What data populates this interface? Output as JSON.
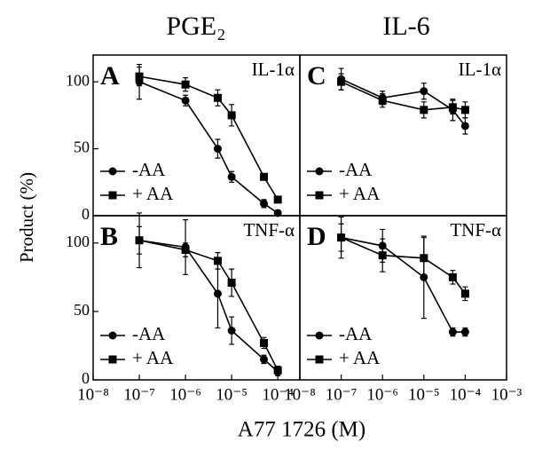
{
  "column_titles": [
    "PGE₂",
    "IL-6"
  ],
  "y_label": "Product (%)",
  "x_label": "A77 1726 (M)",
  "chart_data": [
    {
      "type": "line",
      "panel_label": "A",
      "annotation": "IL-1α",
      "xlog": true,
      "legend": "lower left",
      "xlim": [
        1e-08,
        0.0003
      ],
      "ylim": [
        0,
        120
      ],
      "yticks": [
        0,
        50,
        100
      ],
      "x": [
        1e-07,
        1e-06,
        5e-06,
        1e-05,
        5e-05,
        0.0001
      ],
      "series": [
        {
          "name": "-AA",
          "color": "#000000",
          "marker": "circle",
          "values": [
            100,
            86,
            50,
            29,
            9,
            2
          ],
          "errors": [
            13,
            4,
            7,
            4,
            3,
            2
          ]
        },
        {
          "name": "+ AA",
          "color": "#000000",
          "marker": "square",
          "values": [
            104,
            98,
            88,
            75,
            29,
            12
          ],
          "errors": [
            7,
            5,
            6,
            8,
            2,
            2
          ]
        }
      ]
    },
    {
      "type": "line",
      "panel_label": "B",
      "annotation": "TNF-α",
      "xlog": true,
      "legend": "lower left",
      "xlim": [
        1e-08,
        0.0003
      ],
      "ylim": [
        0,
        120
      ],
      "yticks": [
        0,
        50,
        100
      ],
      "xticks": [
        {
          "value": 1e-08,
          "label": "10⁻⁸"
        },
        {
          "value": 1e-07,
          "label": "10⁻⁷"
        },
        {
          "value": 1e-06,
          "label": "10⁻⁶"
        },
        {
          "value": 1e-05,
          "label": "10⁻⁵"
        },
        {
          "value": 0.0001,
          "label": "10⁻⁴"
        }
      ],
      "x": [
        1e-07,
        1e-06,
        5e-06,
        1e-05,
        5e-05,
        0.0001
      ],
      "series": [
        {
          "name": "-AA",
          "color": "#000000",
          "marker": "circle",
          "values": [
            102,
            97,
            63,
            36,
            15,
            6
          ],
          "errors": [
            20,
            20,
            25,
            10,
            3,
            3
          ]
        },
        {
          "name": "+ AA",
          "color": "#000000",
          "marker": "square",
          "values": [
            102,
            95,
            87,
            71,
            27,
            7
          ],
          "errors": [
            10,
            5,
            6,
            10,
            4,
            3
          ]
        }
      ]
    },
    {
      "type": "line",
      "panel_label": "C",
      "annotation": "IL-1α",
      "xlog": true,
      "legend": "lower left",
      "xlim": [
        1e-08,
        0.001
      ],
      "ylim": [
        0,
        120
      ],
      "x": [
        1e-07,
        1e-06,
        1e-05,
        5e-05,
        0.0001
      ],
      "series": [
        {
          "name": "-AA",
          "color": "#000000",
          "marker": "circle",
          "values": [
            102,
            88,
            93,
            79,
            67
          ],
          "errors": [
            8,
            5,
            6,
            8,
            6
          ]
        },
        {
          "name": "+ AA",
          "color": "#000000",
          "marker": "square",
          "values": [
            100,
            86,
            79,
            81,
            79
          ],
          "errors": [
            6,
            5,
            6,
            5,
            6
          ]
        }
      ]
    },
    {
      "type": "line",
      "panel_label": "D",
      "annotation": "TNF-α",
      "xlog": true,
      "legend": "lower left",
      "xlim": [
        1e-08,
        0.001
      ],
      "ylim": [
        0,
        120
      ],
      "xticks": [
        {
          "value": 1e-08,
          "label": "10⁻⁸"
        },
        {
          "value": 1e-07,
          "label": "10⁻⁷"
        },
        {
          "value": 1e-06,
          "label": "10⁻⁶"
        },
        {
          "value": 1e-05,
          "label": "10⁻⁵"
        },
        {
          "value": 0.0001,
          "label": "10⁻⁴"
        },
        {
          "value": 0.001,
          "label": "10⁻³"
        }
      ],
      "x": [
        1e-07,
        1e-06,
        1e-05,
        5e-05,
        0.0001
      ],
      "series": [
        {
          "name": "-AA",
          "color": "#000000",
          "marker": "circle",
          "values": [
            104,
            98,
            75,
            35,
            35
          ],
          "errors": [
            15,
            12,
            30,
            3,
            3
          ]
        },
        {
          "name": "+ AA",
          "color": "#000000",
          "marker": "square",
          "values": [
            104,
            91,
            89,
            75,
            63
          ],
          "errors": [
            10,
            12,
            15,
            5,
            5
          ]
        }
      ]
    }
  ]
}
